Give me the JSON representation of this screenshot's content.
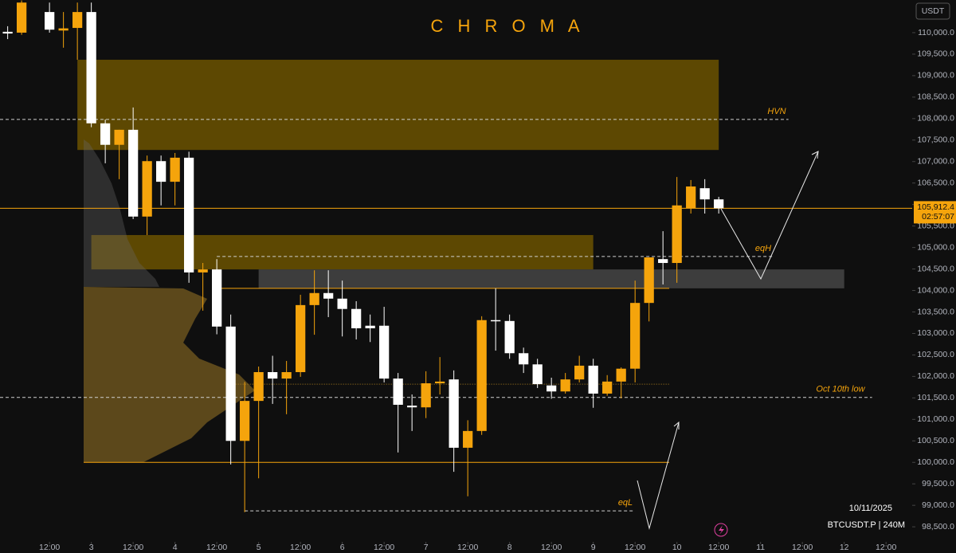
{
  "chart_data": {
    "type": "candlestick",
    "title": "C H R O M A",
    "symbol": "BTCUSDT.P | 240M",
    "date": "10/11/2025",
    "currency": "USDT",
    "up_color": "#f5a40c",
    "down_color": "#ffffff",
    "x": [
      0,
      4,
      12,
      16,
      20,
      24,
      28,
      32,
      36,
      40,
      44,
      48,
      52,
      56,
      60,
      64,
      68,
      72,
      76,
      80,
      84,
      88,
      92,
      96,
      100,
      104,
      108,
      112,
      116,
      120,
      124,
      128,
      132,
      136,
      140,
      144,
      148,
      152,
      156,
      160,
      164,
      168,
      172,
      176,
      180,
      184,
      188,
      192,
      196,
      200,
      204
    ],
    "open": [
      110020,
      110000,
      110480,
      110050,
      110110,
      110480,
      107890,
      107390,
      107740,
      105720,
      107010,
      106530,
      107090,
      104420,
      104490,
      103160,
      100500,
      101430,
      102100,
      101950,
      102100,
      103660,
      103940,
      103810,
      103570,
      103180,
      103180,
      101950,
      101320,
      101280,
      101840,
      101930,
      100340,
      100730,
      103310,
      103290,
      102540,
      102280,
      101790,
      101650,
      101930,
      102250,
      101600,
      101880,
      102180,
      103710,
      104730,
      104640,
      105910,
      106380,
      106120
    ],
    "high": [
      110150,
      110750,
      110700,
      110480,
      110700,
      110700,
      107980,
      107740,
      108260,
      107140,
      107140,
      107200,
      107230,
      104640,
      104730,
      103440,
      101870,
      102230,
      102480,
      102360,
      103900,
      104470,
      104470,
      104230,
      103750,
      103440,
      103620,
      102080,
      101580,
      102120,
      102450,
      102140,
      100980,
      103400,
      104050,
      103440,
      102670,
      102410,
      101970,
      102080,
      102480,
      102410,
      102030,
      102210,
      104230,
      104770,
      105380,
      106640,
      106570,
      106590,
      106180
    ],
    "low": [
      109850,
      109950,
      110000,
      109650,
      109370,
      107800,
      106960,
      106590,
      105660,
      105290,
      105980,
      105980,
      104180,
      103530,
      102980,
      99950,
      98840,
      99630,
      101360,
      101120,
      101990,
      102970,
      103380,
      102930,
      102860,
      102800,
      101860,
      100230,
      100730,
      101030,
      101580,
      99780,
      99210,
      100640,
      102600,
      102410,
      102080,
      101730,
      101480,
      101600,
      101860,
      101270,
      101550,
      101490,
      101860,
      103280,
      104140,
      104180,
      105790,
      105790,
      105790
    ],
    "close": [
      109980,
      110700,
      110070,
      110100,
      110480,
      107890,
      107390,
      107740,
      105720,
      107010,
      106530,
      107090,
      104420,
      104490,
      103160,
      100500,
      101430,
      102100,
      101950,
      102100,
      103660,
      103940,
      103810,
      103570,
      103120,
      103120,
      101950,
      101340,
      101280,
      101840,
      101880,
      100340,
      100730,
      103310,
      103290,
      102540,
      102280,
      101820,
      101650,
      101930,
      102250,
      101600,
      101880,
      102180,
      103710,
      104770,
      104640,
      105980,
      106420,
      106120,
      105912.4
    ],
    "last_price": {
      "value": 105912.4,
      "label": "105,912.4"
    },
    "countdown": "02:57:07",
    "zones": [
      {
        "x": [
          20,
          204
        ],
        "y": [
          107270,
          109370
        ],
        "color": "#6b5200"
      },
      {
        "x": [
          24,
          168
        ],
        "y": [
          104490,
          105290
        ],
        "color": "#6b5200"
      },
      {
        "x": [
          72,
          240
        ],
        "y": [
          104050,
          104490
        ],
        "color": "#454545"
      }
    ],
    "levels": [
      {
        "name": "HVN",
        "value": 107980,
        "x": [
          -2.2,
          224
        ],
        "style": "dashed",
        "color": "#d0d0d0"
      },
      {
        "name": "eqH",
        "value": 104790,
        "x": [
          60,
          219.5
        ],
        "style": "dashed",
        "color": "#d0d0d0"
      },
      {
        "value": 104050,
        "x": [
          60.7,
          189.8
        ],
        "style": "solid",
        "color": "#f5a40c"
      },
      {
        "value": 101820,
        "x": [
          64,
          189.8
        ],
        "style": "dotted",
        "color": "#b08020"
      },
      {
        "name": "Oct 10th low",
        "value": 101510,
        "x": [
          -2.2,
          248
        ],
        "style": "dashed",
        "color": "#d0d0d0"
      },
      {
        "value": 100000,
        "x": [
          21.8,
          189.8
        ],
        "style": "solid",
        "color": "#f5a40c"
      },
      {
        "name": "eqL",
        "value": 98870,
        "x": [
          68,
          179.5
        ],
        "style": "dashed",
        "color": "#d0d0d0"
      }
    ],
    "xlim": [
      -2.2,
      259.5
    ],
    "ylim": [
      98150,
      110760
    ],
    "xticks": [
      {
        "value": 12,
        "label": "12:00"
      },
      {
        "value": 24,
        "label": "3"
      },
      {
        "value": 36,
        "label": "12:00"
      },
      {
        "value": 48,
        "label": "4"
      },
      {
        "value": 60,
        "label": "12:00"
      },
      {
        "value": 72,
        "label": "5"
      },
      {
        "value": 84,
        "label": "12:00"
      },
      {
        "value": 96,
        "label": "6"
      },
      {
        "value": 108,
        "label": "12:00"
      },
      {
        "value": 120,
        "label": "7"
      },
      {
        "value": 132,
        "label": "12:00"
      },
      {
        "value": 144,
        "label": "8"
      },
      {
        "value": 156,
        "label": "12:00"
      },
      {
        "value": 168,
        "label": "9"
      },
      {
        "value": 180,
        "label": "12:00"
      },
      {
        "value": 192,
        "label": "10"
      },
      {
        "value": 204,
        "label": "12:00"
      },
      {
        "value": 216,
        "label": "11"
      },
      {
        "value": 228,
        "label": "12:00"
      },
      {
        "value": 240,
        "label": "12"
      },
      {
        "value": 252,
        "label": "12:00"
      }
    ],
    "yticks": [
      {
        "value": 98500,
        "label": "98,500.0"
      },
      {
        "value": 99000,
        "label": "99,000.0"
      },
      {
        "value": 99500,
        "label": "99,500.0"
      },
      {
        "value": 100000,
        "label": "100,000.0"
      },
      {
        "value": 100500,
        "label": "100,500.0"
      },
      {
        "value": 101000,
        "label": "101,000.0"
      },
      {
        "value": 101500,
        "label": "101,500.0"
      },
      {
        "value": 102000,
        "label": "102,000.0"
      },
      {
        "value": 102500,
        "label": "102,500.0"
      },
      {
        "value": 103000,
        "label": "103,000.0"
      },
      {
        "value": 103500,
        "label": "103,500.0"
      },
      {
        "value": 104000,
        "label": "104,000.0"
      },
      {
        "value": 104500,
        "label": "104,500.0"
      },
      {
        "value": 105000,
        "label": "105,000.0"
      },
      {
        "value": 105500,
        "label": "105,500.0"
      },
      {
        "value": 106000,
        "label": "106,000.0"
      },
      {
        "value": 106500,
        "label": "106,500.0"
      },
      {
        "value": 107000,
        "label": "107,000.0"
      },
      {
        "value": 107500,
        "label": "107,500.0"
      },
      {
        "value": 108000,
        "label": "108,000.0"
      },
      {
        "value": 108500,
        "label": "108,500.0"
      },
      {
        "value": 109000,
        "label": "109,000.0"
      },
      {
        "value": 109500,
        "label": "109,500.0"
      },
      {
        "value": 110000,
        "label": "110,000.0"
      }
    ]
  }
}
